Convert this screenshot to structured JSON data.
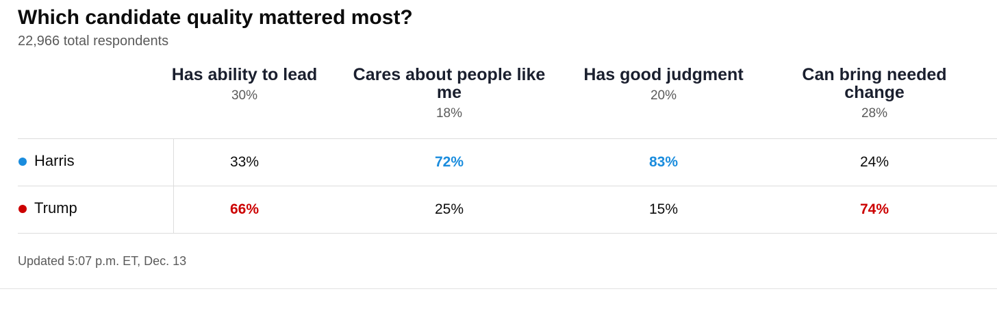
{
  "title": "Which candidate quality mattered most?",
  "subtitle": "22,966 total respondents",
  "footer": "Updated 5:07 p.m. ET, Dec. 13",
  "chart_data": {
    "type": "table",
    "title": "Which candidate quality mattered most?",
    "subtitle": "22,966 total respondents",
    "columns": [
      {
        "label": "Has ability to lead",
        "share": "30%"
      },
      {
        "label": "Cares about people like me",
        "share": "18%"
      },
      {
        "label": "Has good judgment",
        "share": "20%"
      },
      {
        "label": "Can bring needed change",
        "share": "28%"
      }
    ],
    "rows": [
      {
        "name": "Harris",
        "color": "#1a8cdd",
        "values": [
          "33%",
          "72%",
          "83%",
          "24%"
        ]
      },
      {
        "name": "Trump",
        "color": "#cc0000",
        "values": [
          "66%",
          "25%",
          "15%",
          "74%"
        ]
      }
    ]
  }
}
